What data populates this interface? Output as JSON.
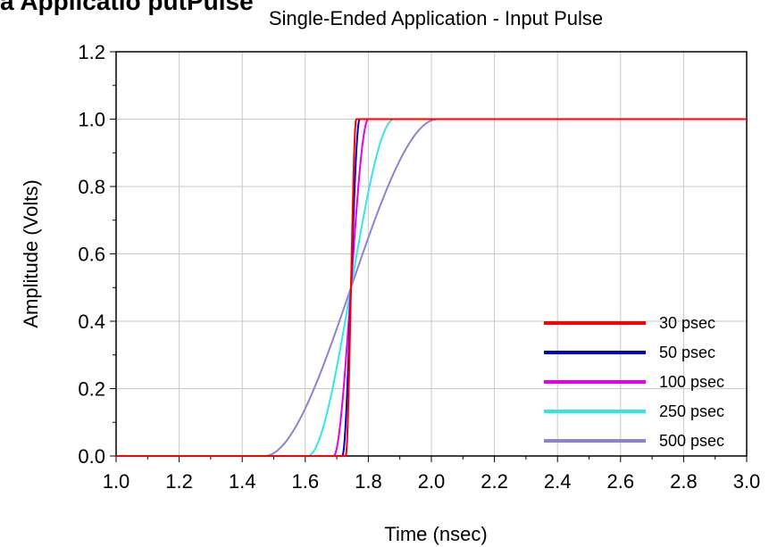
{
  "header_fragment": "a Applicatio    putPulse",
  "chart_data": {
    "type": "line",
    "title": "Single-Ended Application - Input Pulse",
    "xlabel": "Time (nsec)",
    "ylabel": "Amplitude (Volts)",
    "xlim": [
      1.0,
      3.0
    ],
    "ylim": [
      0.0,
      1.2
    ],
    "xticks": [
      "1.0",
      "1.2",
      "1.4",
      "1.6",
      "1.8",
      "2.0",
      "2.2",
      "2.4",
      "2.6",
      "2.8",
      "3.0"
    ],
    "yticks": [
      "0.0",
      "0.2",
      "0.4",
      "0.6",
      "0.8",
      "1.0",
      "1.2"
    ],
    "grid": true,
    "legend_position": "bottom-right",
    "center_time": 1.745,
    "series": [
      {
        "name": "30 psec",
        "rise_time": 0.03,
        "color": "#ff0000"
      },
      {
        "name": "50 psec",
        "rise_time": 0.05,
        "color": "#0000c8"
      },
      {
        "name": "100 psec",
        "rise_time": 0.1,
        "color": "#e600e6"
      },
      {
        "name": "250 psec",
        "rise_time": 0.25,
        "color": "#33e6e6"
      },
      {
        "name": "500 psec",
        "rise_time": 0.5,
        "color": "#8c82d2"
      }
    ]
  }
}
